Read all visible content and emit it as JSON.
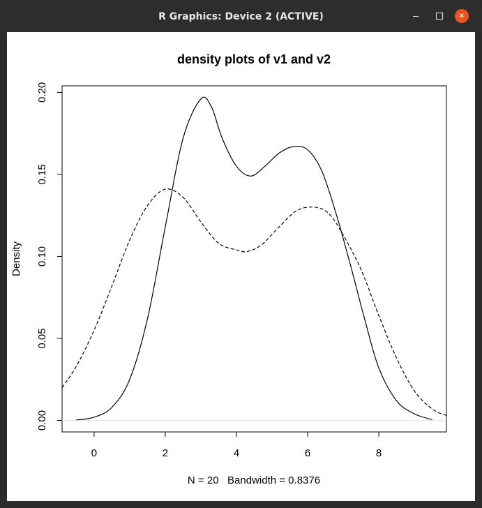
{
  "window": {
    "title": "R Graphics: Device 2 (ACTIVE)",
    "buttons": {
      "minimize": "minimize",
      "maximize": "maximize",
      "close": "×"
    }
  },
  "chart_data": {
    "type": "line",
    "title": "density plots of v1 and v2",
    "xlabel": "N = 20   Bandwidth = 0.8376",
    "ylabel": "Density",
    "xlim": [
      -0.9,
      9.9
    ],
    "ylim": [
      -0.007,
      0.204
    ],
    "x_ticks": [
      0,
      2,
      4,
      6,
      8
    ],
    "y_ticks": [
      0.0,
      0.05,
      0.1,
      0.15,
      0.2
    ],
    "x_tick_labels": [
      "0",
      "2",
      "4",
      "6",
      "8"
    ],
    "y_tick_labels": [
      "0.00",
      "0.05",
      "0.10",
      "0.15",
      "0.20"
    ],
    "grid": false,
    "series": [
      {
        "line": "solid",
        "x": [
          -0.5,
          0.0,
          0.5,
          1.0,
          1.5,
          2.0,
          2.5,
          3.0,
          3.3,
          3.6,
          4.0,
          4.4,
          4.8,
          5.2,
          5.6,
          6.0,
          6.4,
          6.8,
          7.2,
          7.6,
          8.0,
          8.5,
          9.0,
          9.5
        ],
        "y": [
          0.0003,
          0.002,
          0.008,
          0.025,
          0.062,
          0.118,
          0.172,
          0.196,
          0.191,
          0.172,
          0.155,
          0.149,
          0.155,
          0.163,
          0.167,
          0.165,
          0.152,
          0.126,
          0.095,
          0.062,
          0.032,
          0.012,
          0.004,
          0.0005
        ]
      },
      {
        "line": "dashed",
        "x": [
          -0.9,
          -0.5,
          0.0,
          0.5,
          1.0,
          1.5,
          2.0,
          2.5,
          3.0,
          3.5,
          4.0,
          4.3,
          4.7,
          5.2,
          5.7,
          6.2,
          6.6,
          7.0,
          7.5,
          8.0,
          8.5,
          9.0,
          9.5,
          9.9
        ],
        "y": [
          0.02,
          0.033,
          0.055,
          0.082,
          0.11,
          0.131,
          0.141,
          0.136,
          0.121,
          0.108,
          0.104,
          0.103,
          0.107,
          0.118,
          0.128,
          0.13,
          0.126,
          0.113,
          0.092,
          0.064,
          0.038,
          0.018,
          0.007,
          0.003
        ]
      }
    ]
  }
}
